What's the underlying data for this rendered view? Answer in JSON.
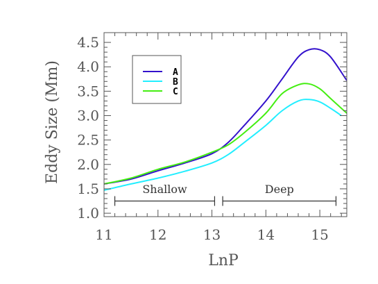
{
  "chart_data": {
    "type": "line",
    "xlabel": "LnP",
    "ylabel": "Eddy Size (Mm)",
    "xlim": [
      11.0,
      15.5
    ],
    "ylim": [
      0.93,
      4.7
    ],
    "x_ticks": [
      11,
      12,
      13,
      14,
      15
    ],
    "x_tick_labels": [
      "11",
      "12",
      "13",
      "14",
      "15"
    ],
    "y_ticks": [
      1.0,
      1.5,
      2.0,
      2.5,
      3.0,
      3.5,
      4.0,
      4.5
    ],
    "y_tick_labels": [
      "1.0",
      "1.5",
      "2.0",
      "2.5",
      "3.0",
      "3.5",
      "4.0",
      "4.5"
    ],
    "grid": false,
    "legend_position": "top-left",
    "series": [
      {
        "name": "A",
        "color": "#3311cc",
        "x": [
          11.0,
          11.5,
          12.0,
          12.5,
          13.0,
          13.3,
          13.6,
          14.0,
          14.3,
          14.6,
          14.8,
          15.0,
          15.2,
          15.5
        ],
        "y": [
          1.6,
          1.7,
          1.87,
          2.03,
          2.22,
          2.45,
          2.8,
          3.3,
          3.75,
          4.2,
          4.35,
          4.35,
          4.2,
          3.72
        ]
      },
      {
        "name": "B",
        "color": "#22eeff",
        "x": [
          11.0,
          11.5,
          12.0,
          12.5,
          13.0,
          13.3,
          13.6,
          14.0,
          14.3,
          14.6,
          14.8,
          15.0,
          15.2,
          15.4
        ],
        "y": [
          1.47,
          1.6,
          1.72,
          1.86,
          2.03,
          2.2,
          2.45,
          2.8,
          3.1,
          3.3,
          3.33,
          3.28,
          3.15,
          3.0
        ]
      },
      {
        "name": "C",
        "color": "#44ee11",
        "x": [
          11.0,
          11.5,
          12.0,
          12.5,
          13.0,
          13.3,
          13.6,
          14.0,
          14.3,
          14.6,
          14.8,
          15.0,
          15.2,
          15.5
        ],
        "y": [
          1.6,
          1.72,
          1.9,
          2.05,
          2.25,
          2.4,
          2.65,
          3.05,
          3.45,
          3.63,
          3.65,
          3.55,
          3.35,
          3.05
        ]
      }
    ],
    "annotations": [
      {
        "label": "Shallow",
        "x_start": 11.2,
        "x_end": 13.05,
        "y": 1.25,
        "label_y": 1.5
      },
      {
        "label": "Deep",
        "x_start": 13.2,
        "x_end": 15.3,
        "y": 1.25,
        "label_y": 1.5
      }
    ]
  }
}
